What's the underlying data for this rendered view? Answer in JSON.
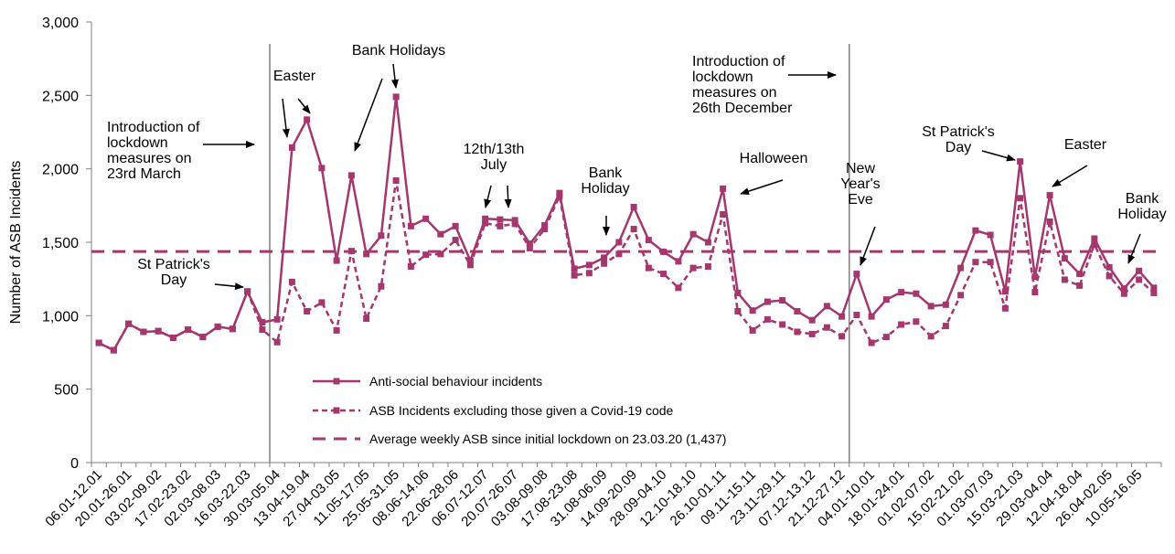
{
  "colors": {
    "series": "#a3376e",
    "axis": "#808080",
    "grid_marker": "#808080",
    "text": "#000000"
  },
  "chart_data": {
    "type": "line",
    "ylabel": "Number of ASB Incidents",
    "xlabel": "",
    "ylim": [
      0,
      3000
    ],
    "yticks": [
      0,
      500,
      1000,
      1500,
      2000,
      2500,
      3000
    ],
    "ytick_labels": [
      "0",
      "500",
      "1,000",
      "1,500",
      "2,000",
      "2,500",
      "3,000"
    ],
    "grid": false,
    "legend_position": "lower-center",
    "x_labels_shown": [
      "06.01-12.01",
      "20.01-26.01",
      "03.02-09.02",
      "17.02-23.02",
      "02.03-08.03",
      "16.03-22.03",
      "30.03-05.04",
      "13.04-19.04",
      "27.04-03.05",
      "11.05-17.05",
      "25.05-31.05",
      "08.06-14.06",
      "22.06-28.06",
      "06.07-12.07",
      "20.07-26.07",
      "03.08-09.08",
      "17.08-23.08",
      "31.08-06.09",
      "14.09-20.09",
      "28.09-04.10",
      "12.10-18.10",
      "26.10-01.11",
      "09.11-15.11",
      "23.11-29.11",
      "07.12-13.12",
      "21.12-27.12",
      "04.01-10.01",
      "18.01-24.01",
      "01.02-07.02",
      "15.02-21.02",
      "01.03-07.03",
      "15.03-21.03",
      "29.03-04.04",
      "12.04-18.04",
      "26.04-02.05",
      "10.05-16.05"
    ],
    "series": [
      {
        "name": "Anti-social behaviour incidents",
        "style": "solid",
        "values": [
          815,
          765,
          945,
          890,
          895,
          850,
          905,
          855,
          925,
          910,
          1165,
          955,
          975,
          2145,
          2335,
          2005,
          1375,
          1955,
          1420,
          1545,
          2490,
          1610,
          1660,
          1555,
          1610,
          1375,
          1660,
          1655,
          1650,
          1490,
          1615,
          1835,
          1320,
          1345,
          1395,
          1500,
          1740,
          1515,
          1435,
          1370,
          1555,
          1500,
          1865,
          1155,
          1035,
          1095,
          1105,
          1030,
          970,
          1065,
          995,
          1285,
          995,
          1110,
          1160,
          1150,
          1065,
          1075,
          1325,
          1580,
          1550,
          1165,
          2050,
          1265,
          1820,
          1390,
          1285,
          1525,
          1330,
          1185,
          1305,
          1190
        ]
      },
      {
        "name": "ASB Incidents excluding those given a Covid-19 code",
        "style": "dashed",
        "values": [
          815,
          765,
          945,
          890,
          895,
          850,
          905,
          855,
          925,
          910,
          1165,
          905,
          820,
          1230,
          1030,
          1090,
          900,
          1440,
          980,
          1200,
          1920,
          1335,
          1415,
          1420,
          1515,
          1345,
          1630,
          1610,
          1625,
          1460,
          1590,
          1815,
          1275,
          1290,
          1355,
          1420,
          1590,
          1325,
          1285,
          1190,
          1325,
          1335,
          1690,
          1030,
          900,
          975,
          940,
          890,
          875,
          920,
          860,
          1005,
          815,
          855,
          940,
          960,
          860,
          930,
          1140,
          1365,
          1365,
          1050,
          1800,
          1160,
          1640,
          1245,
          1205,
          1485,
          1270,
          1150,
          1245,
          1155
        ]
      }
    ],
    "average_line": {
      "name": "Average weekly ASB since initial lockdown on 23.03.20 (1,437)",
      "value": 1437
    },
    "lockdown_markers": [
      {
        "after_index": 11,
        "label_lines": [
          "Introduction of",
          "lockdown",
          "measures on",
          "23rd March"
        ]
      },
      {
        "after_index": 50,
        "label_lines": [
          "Introduction of",
          "lockdown",
          "measures on",
          "26th December"
        ]
      }
    ],
    "annotations": [
      {
        "lines": [
          "St Patrick's",
          "Day"
        ],
        "point_index": 10
      },
      {
        "lines": [
          "Easter"
        ],
        "point_index": 13
      },
      {
        "lines": [
          "Bank Holidays"
        ],
        "point_index": 17
      },
      {
        "lines": [
          "12th/13th",
          "July"
        ],
        "point_index": 26
      },
      {
        "lines": [
          "Bank",
          "Holiday"
        ],
        "point_index": 34
      },
      {
        "lines": [
          "Halloween"
        ],
        "point_index": 42
      },
      {
        "lines": [
          "New",
          "Year's",
          "Eve"
        ],
        "point_index": 51
      },
      {
        "lines": [
          "St Patrick's",
          "Day"
        ],
        "point_index": 62
      },
      {
        "lines": [
          "Easter"
        ],
        "point_index": 64
      },
      {
        "lines": [
          "Bank",
          "Holiday"
        ],
        "point_index": 69
      }
    ]
  }
}
